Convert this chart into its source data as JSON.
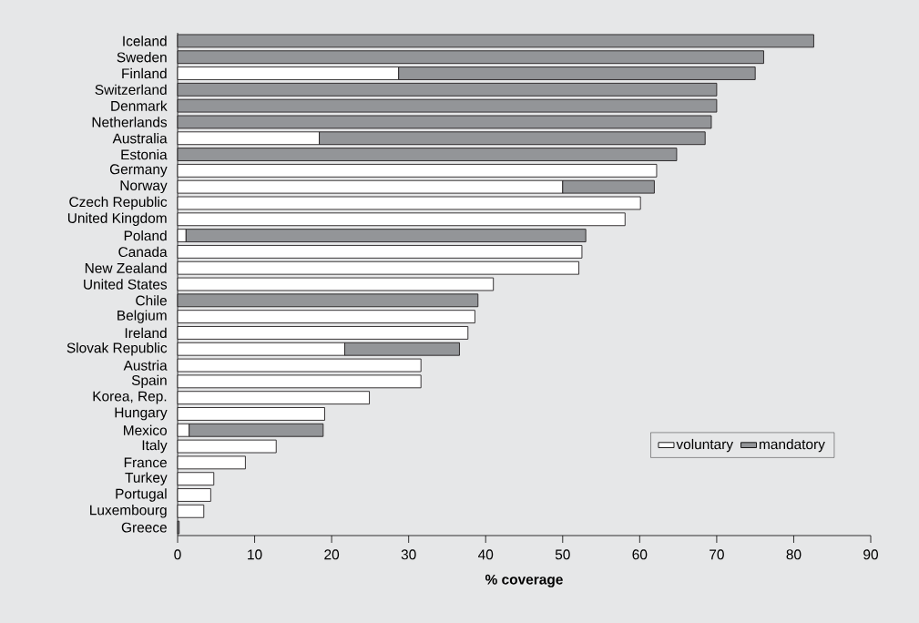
{
  "chart_data": {
    "type": "bar",
    "orientation": "horizontal",
    "stacked": true,
    "xlabel": "% coverage",
    "categories": [
      "Iceland",
      "Sweden",
      "Finland",
      "Switzerland",
      "Denmark",
      "Netherlands",
      "Australia",
      "Estonia",
      "Germany",
      "Norway",
      "Czech Republic",
      "United Kingdom",
      "Poland",
      "Canada",
      "New Zealand",
      "United States",
      "Chile",
      "Belgium",
      "Ireland",
      "Slovak Republic",
      "Austria",
      "Spain",
      "Korea, Rep.",
      "Hungary",
      "Mexico",
      "Italy",
      "France",
      "Turkey",
      "Portugal",
      "Luxembourg",
      "Greece"
    ],
    "series": [
      {
        "name": "voluntary",
        "color": "#ffffff",
        "values": [
          null,
          null,
          28.7,
          null,
          null,
          null,
          18.4,
          null,
          62.2,
          50.0,
          60.1,
          58.1,
          1.1,
          52.5,
          52.1,
          41.0,
          null,
          38.6,
          37.7,
          21.7,
          31.6,
          31.6,
          24.9,
          19.1,
          1.5,
          12.8,
          8.8,
          4.7,
          4.3,
          3.4,
          null
        ]
      },
      {
        "name": "mandatory",
        "color": "#939598",
        "values": [
          82.6,
          76.1,
          46.3,
          70.0,
          70.0,
          69.3,
          50.1,
          64.8,
          null,
          11.9,
          null,
          null,
          51.9,
          null,
          null,
          null,
          39.0,
          null,
          null,
          14.9,
          null,
          null,
          null,
          null,
          17.4,
          null,
          null,
          null,
          null,
          null,
          0.2
        ]
      }
    ],
    "xlim": [
      0,
      90
    ],
    "xticks": [
      0,
      10,
      20,
      30,
      40,
      50,
      60,
      70,
      80,
      90
    ],
    "grid": false,
    "legend": "bottom right"
  }
}
